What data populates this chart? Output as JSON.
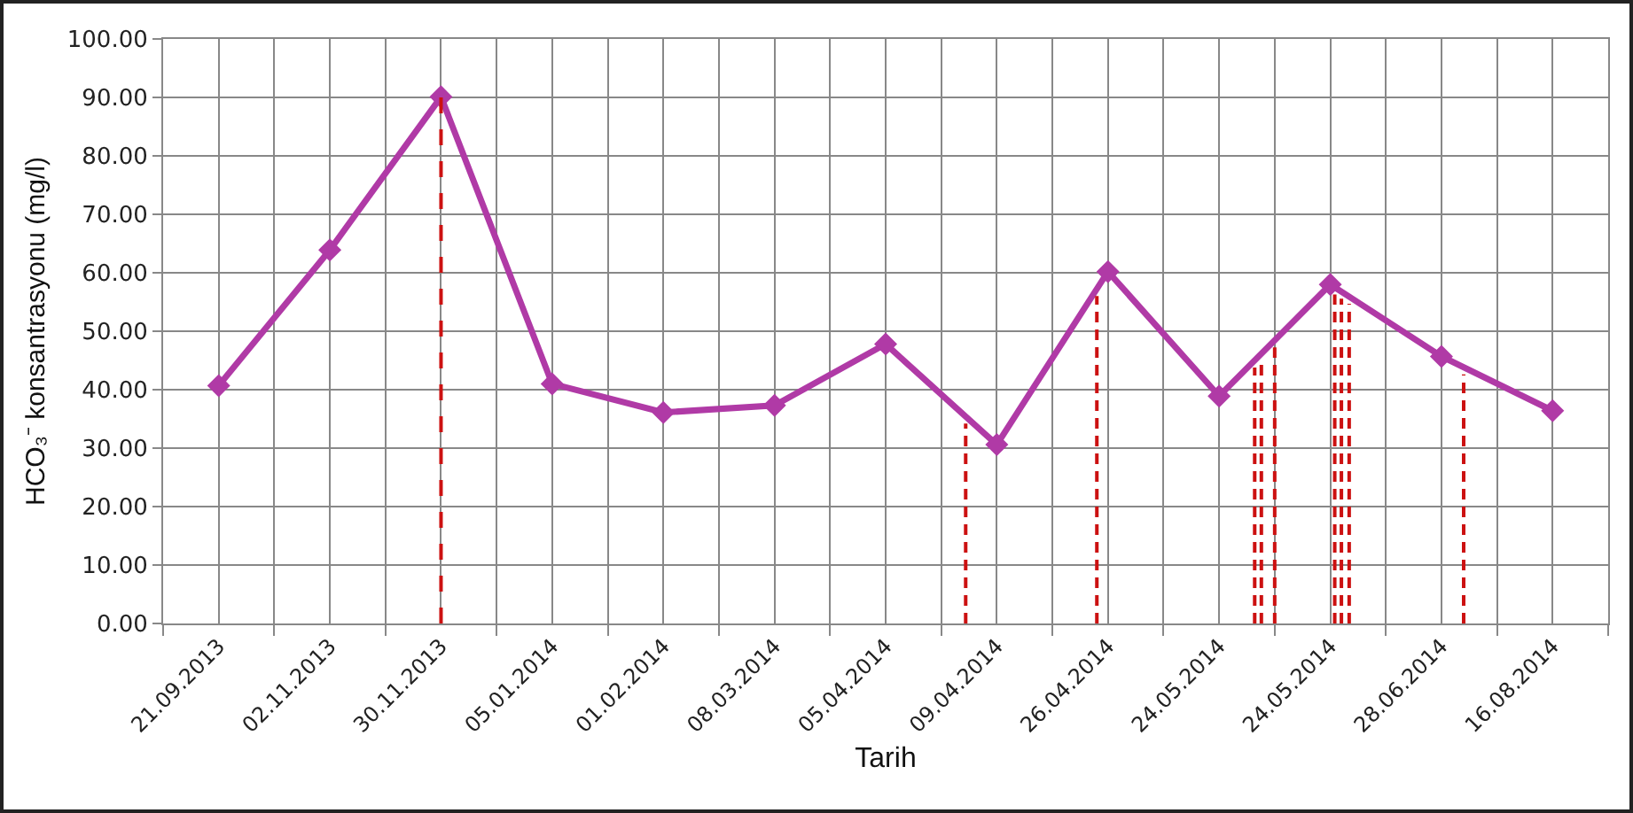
{
  "chart_data": {
    "type": "line",
    "xlabel": "Tarih",
    "ylabel": "HCO₃⁻ konsantrasyonu (mg/l)",
    "categories": [
      "21.09.2013",
      "02.11.2013",
      "30.11.2013",
      "05.01.2014",
      "01.02.2014",
      "08.03.2014",
      "05.04.2014",
      "09.04.2014",
      "26.04.2014",
      "24.05.2014",
      "24.05.2014",
      "28.06.2014",
      "16.08.2014"
    ],
    "series": [
      {
        "color": "#b03aa6",
        "values": [
          40.7,
          63.9,
          90.1,
          41.0,
          36.1,
          37.3,
          47.8,
          30.6,
          60.2,
          38.9,
          58.0,
          45.7,
          36.4
        ]
      }
    ],
    "ylim": [
      0,
      100
    ],
    "yticks": [
      {
        "value": 0,
        "label": "0.00"
      },
      {
        "value": 10,
        "label": "10.00"
      },
      {
        "value": 20,
        "label": "20.00"
      },
      {
        "value": 30,
        "label": "30.00"
      },
      {
        "value": 40,
        "label": "40.00"
      },
      {
        "value": 50,
        "label": "50.00"
      },
      {
        "value": 60,
        "label": "60.00"
      },
      {
        "value": 70,
        "label": "70.00"
      },
      {
        "value": 80,
        "label": "80.00"
      },
      {
        "value": 90,
        "label": "90.00"
      },
      {
        "value": 100,
        "label": "100.00"
      }
    ],
    "ref_lines": [
      {
        "axis": "x",
        "value": "30.11.2013",
        "color": "#cc1111",
        "line_style": "dashed"
      }
    ],
    "grid": true,
    "marker": "diamond",
    "line_style": "solid"
  }
}
